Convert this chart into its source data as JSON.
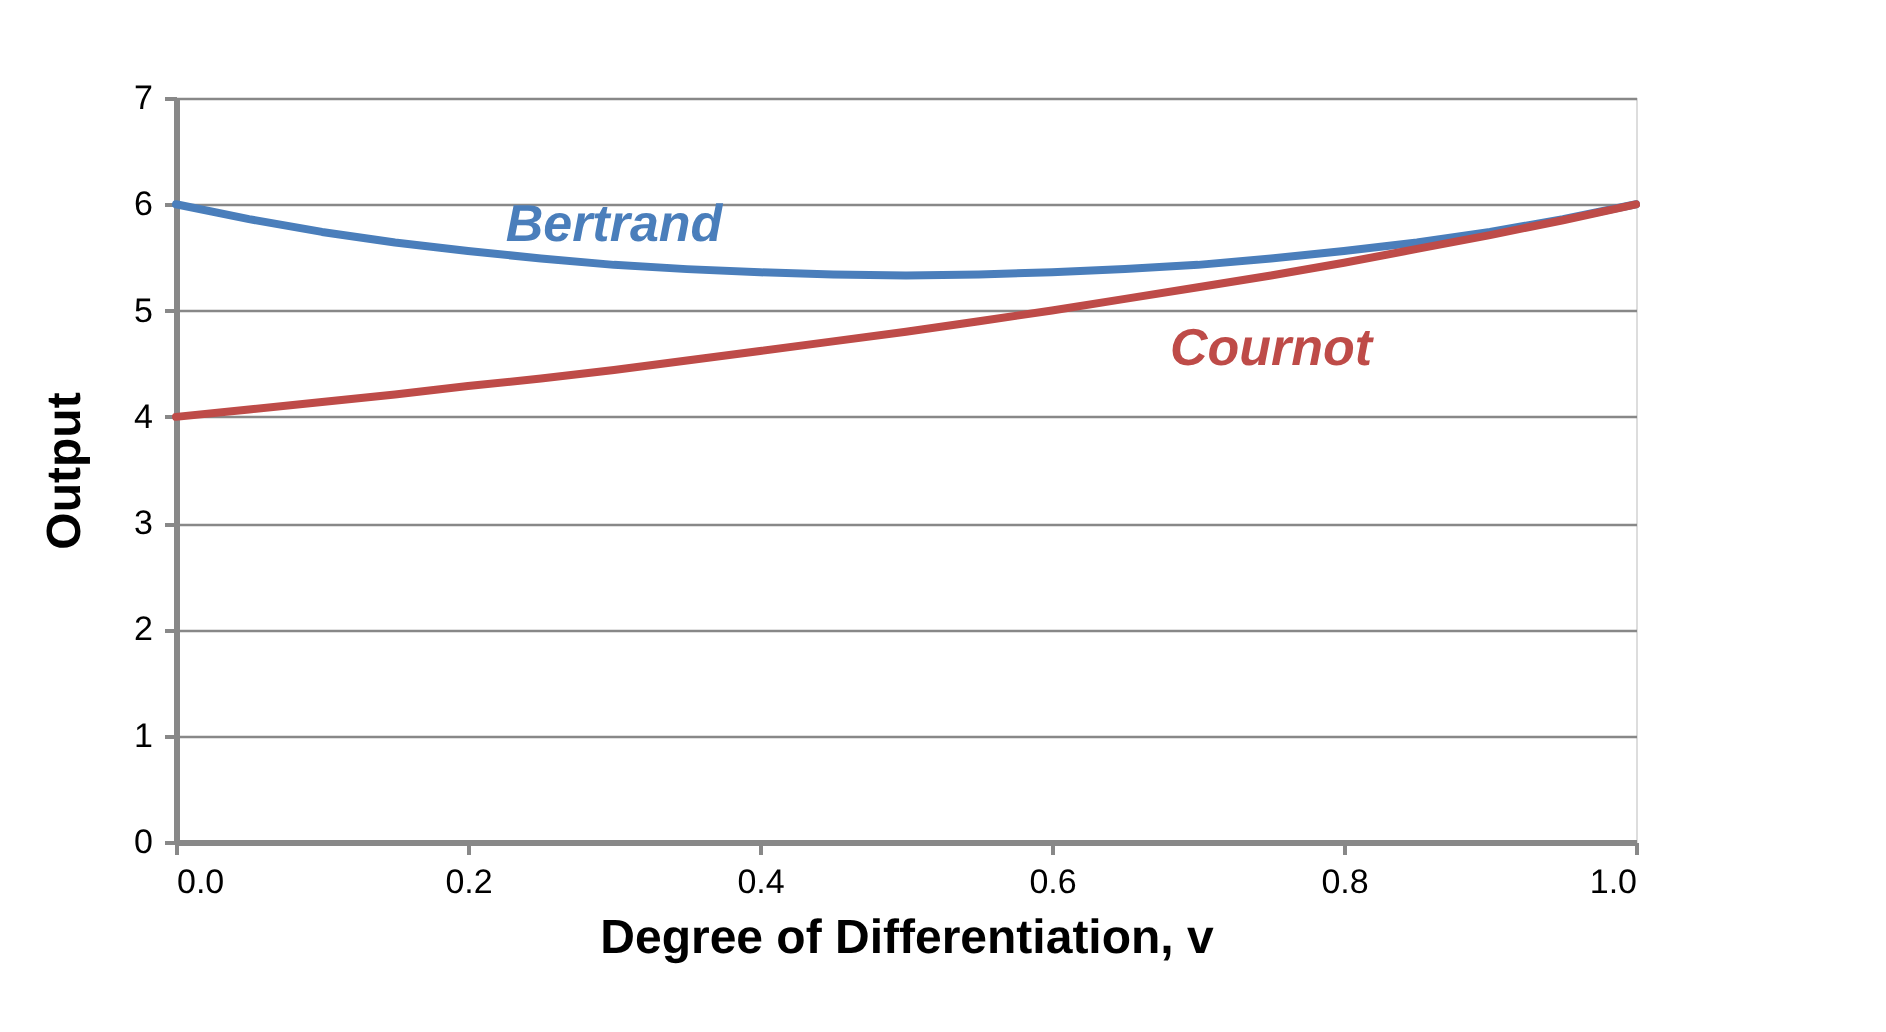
{
  "chart_data": {
    "type": "line",
    "xlabel": "Degree of Differentiation, v",
    "ylabel": "Output",
    "x": [
      0,
      0.05,
      0.1,
      0.15,
      0.2,
      0.25,
      0.3,
      0.35,
      0.4,
      0.45,
      0.5,
      0.55,
      0.6,
      0.65,
      0.7,
      0.75,
      0.8,
      0.85,
      0.9,
      0.95,
      1.0
    ],
    "series": [
      {
        "name": "Bertrand",
        "color": "#4a7ebb",
        "values": [
          6,
          5.86,
          5.74,
          5.64,
          5.56,
          5.49,
          5.43,
          5.39,
          5.36,
          5.34,
          5.33,
          5.34,
          5.36,
          5.39,
          5.43,
          5.49,
          5.56,
          5.64,
          5.74,
          5.86,
          6
        ]
      },
      {
        "name": "Cournot",
        "color": "#be4b48",
        "values": [
          4,
          4.07,
          4.14,
          4.21,
          4.29,
          4.36,
          4.44,
          4.53,
          4.62,
          4.71,
          4.8,
          4.9,
          5,
          5.11,
          5.22,
          5.33,
          5.45,
          5.58,
          5.71,
          5.85,
          6
        ]
      }
    ],
    "xlim": [
      0,
      1.0
    ],
    "xticks": [
      {
        "value": 0,
        "label": "0.0"
      },
      0.2,
      0.4,
      0.6,
      0.8,
      {
        "value": 1.0,
        "label": "1.0"
      }
    ],
    "ylim": [
      0,
      7
    ],
    "yticks": [
      0,
      1,
      2,
      3,
      4,
      5,
      6,
      7
    ],
    "grid": "y",
    "legend": false,
    "marker": "none",
    "line_style": "solid"
  }
}
